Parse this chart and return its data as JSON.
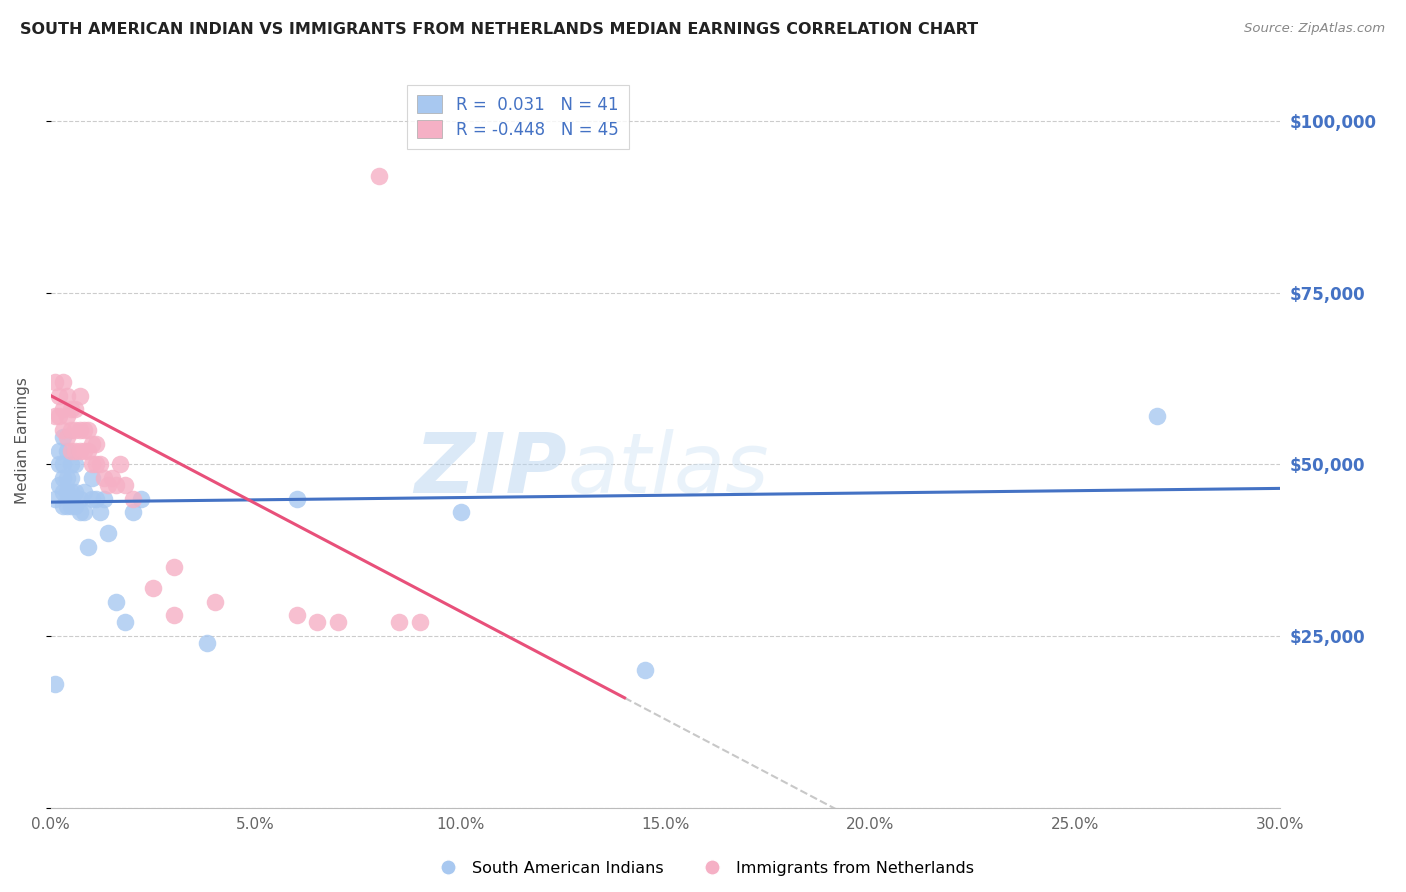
{
  "title": "SOUTH AMERICAN INDIAN VS IMMIGRANTS FROM NETHERLANDS MEDIAN EARNINGS CORRELATION CHART",
  "source": "Source: ZipAtlas.com",
  "ylabel": "Median Earnings",
  "yticks": [
    0,
    25000,
    50000,
    75000,
    100000
  ],
  "ytick_labels": [
    "",
    "$25,000",
    "$50,000",
    "$75,000",
    "$100,000"
  ],
  "xlim": [
    0.0,
    0.3
  ],
  "ylim": [
    0,
    107000
  ],
  "blue_R": "0.031",
  "blue_N": "41",
  "pink_R": "-0.448",
  "pink_N": "45",
  "blue_color": "#a8c8f0",
  "pink_color": "#f5b0c5",
  "blue_line_color": "#4472c4",
  "pink_line_color": "#e8507a",
  "dash_color": "#c8c8c8",
  "watermark_zip": "ZIP",
  "watermark_atlas": "atlas",
  "legend_label_blue": "South American Indians",
  "legend_label_pink": "Immigrants from Netherlands",
  "blue_scatter_x": [
    0.001,
    0.001,
    0.002,
    0.002,
    0.002,
    0.003,
    0.003,
    0.003,
    0.003,
    0.003,
    0.004,
    0.004,
    0.004,
    0.004,
    0.005,
    0.005,
    0.005,
    0.005,
    0.006,
    0.006,
    0.006,
    0.007,
    0.007,
    0.008,
    0.008,
    0.009,
    0.01,
    0.01,
    0.011,
    0.012,
    0.013,
    0.014,
    0.016,
    0.018,
    0.02,
    0.022,
    0.06,
    0.1,
    0.145,
    0.27,
    0.038
  ],
  "blue_scatter_y": [
    18000,
    45000,
    47000,
    50000,
    52000,
    44000,
    46000,
    48000,
    50000,
    54000,
    44000,
    46000,
    48000,
    52000,
    44000,
    46000,
    48000,
    50000,
    44000,
    46000,
    50000,
    43000,
    45000,
    43000,
    46000,
    38000,
    45000,
    48000,
    45000,
    43000,
    45000,
    40000,
    30000,
    27000,
    43000,
    45000,
    45000,
    43000,
    20000,
    57000,
    24000
  ],
  "pink_scatter_x": [
    0.001,
    0.001,
    0.002,
    0.002,
    0.003,
    0.003,
    0.003,
    0.004,
    0.004,
    0.004,
    0.005,
    0.005,
    0.005,
    0.006,
    0.006,
    0.006,
    0.007,
    0.007,
    0.007,
    0.008,
    0.008,
    0.009,
    0.009,
    0.01,
    0.01,
    0.011,
    0.011,
    0.012,
    0.013,
    0.014,
    0.015,
    0.016,
    0.017,
    0.018,
    0.02,
    0.025,
    0.03,
    0.06,
    0.065,
    0.07,
    0.08,
    0.085,
    0.09,
    0.03,
    0.04
  ],
  "pink_scatter_y": [
    57000,
    62000,
    57000,
    60000,
    55000,
    58000,
    62000,
    54000,
    57000,
    60000,
    52000,
    55000,
    58000,
    52000,
    55000,
    58000,
    52000,
    55000,
    60000,
    52000,
    55000,
    52000,
    55000,
    50000,
    53000,
    50000,
    53000,
    50000,
    48000,
    47000,
    48000,
    47000,
    50000,
    47000,
    45000,
    32000,
    28000,
    28000,
    27000,
    27000,
    92000,
    27000,
    27000,
    35000,
    30000
  ]
}
